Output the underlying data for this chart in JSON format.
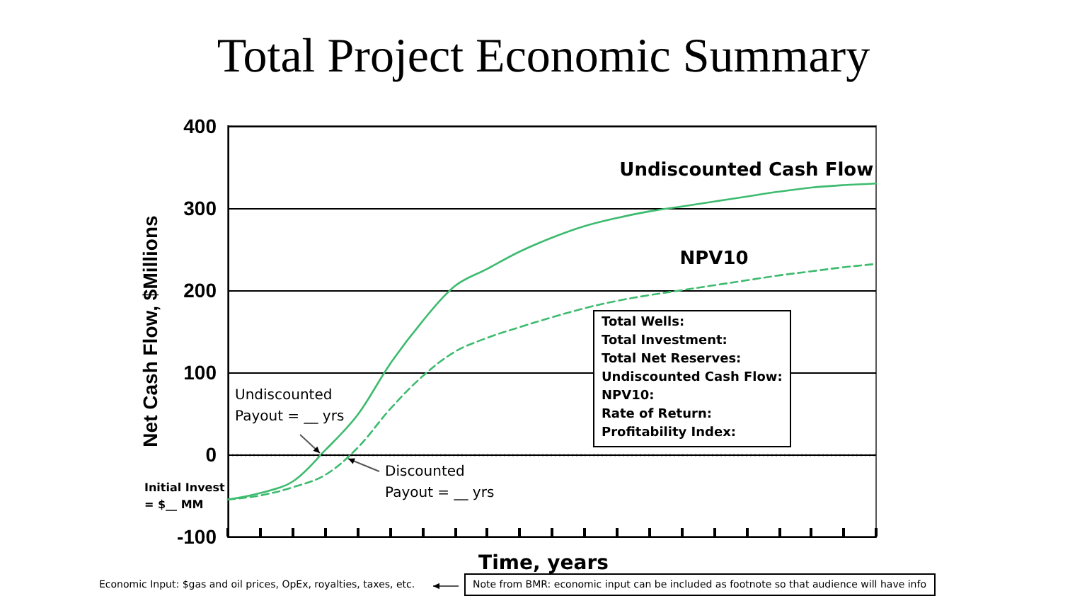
{
  "chart_data": {
    "type": "line",
    "title": "Total Project Economic Summary",
    "xlabel": "Time, years",
    "ylabel": "Net Cash Flow, $Millions",
    "categories": [
      null,
      null,
      null,
      null,
      null,
      null,
      null,
      null,
      null,
      null,
      null,
      null,
      null,
      null,
      null,
      null,
      null,
      null,
      null,
      null,
      null
    ],
    "series": [
      {
        "name": "Undiscounted Cash Flow",
        "color": "#3dbb6e",
        "line_style": "solid",
        "values": [
          -55,
          -47,
          -33,
          5,
          48,
          110,
          162,
          205,
          226,
          247,
          264,
          278,
          288,
          296,
          302,
          308,
          314,
          320,
          325,
          328,
          330
        ]
      },
      {
        "name": "NPV10",
        "color": "#3dbb6e",
        "line_style": "dashed",
        "values": [
          -55,
          -50,
          -40,
          -25,
          8,
          55,
          95,
          125,
          142,
          155,
          167,
          178,
          187,
          194,
          200,
          206,
          212,
          218,
          223,
          228,
          232
        ]
      }
    ],
    "ylim": [
      -100,
      400
    ],
    "yticks": [
      -100,
      0,
      100,
      200,
      300,
      400
    ],
    "grid": "y",
    "legend": false,
    "marker": "none",
    "ref_lines": [
      {
        "axis": "y",
        "value": 0,
        "label": null,
        "color": "#000000",
        "line_style": "dotted"
      }
    ],
    "annotations": [
      "Undiscounted\nPayout = __ yrs",
      "Discounted\nPayout = __ yrs",
      "Initial Invest\n= $__ MM",
      "Total Wells:\nTotal Investment:\nTotal Net Reserves:\nUndiscounted Cash Flow:\nNPV10:\nRate of Return:\nProfitability Index:",
      "Economic Input: $gas and oil prices, OpEx, royalties, taxes, etc.",
      "Note from BMR: economic input can be included as footnote so that audience will have info"
    ]
  }
}
